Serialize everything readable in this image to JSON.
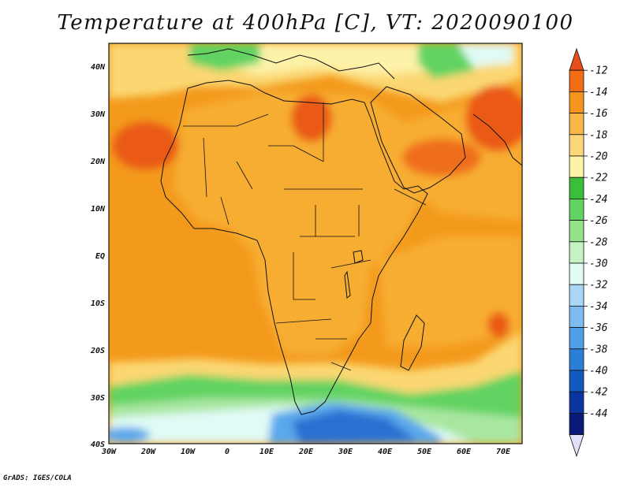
{
  "title": "Temperature at 400hPa [C], VT: 2020090100",
  "credit": "GrADS: IGES/COLA",
  "axes": {
    "lon_labels": [
      "30W",
      "20W",
      "10W",
      "0",
      "10E",
      "20E",
      "30E",
      "40E",
      "50E",
      "60E",
      "70E"
    ],
    "lat_labels": [
      "40N",
      "30N",
      "20N",
      "10N",
      "EQ",
      "10S",
      "20S",
      "30S",
      "40S"
    ]
  },
  "map_data": {
    "variable": "Temperature",
    "level": "400hPa",
    "units": "C",
    "valid_time": "2020090100",
    "lon_range": [
      -30,
      75
    ],
    "lat_range": [
      -40,
      45
    ]
  },
  "colorbar": {
    "labels": [
      "-12",
      "-14",
      "-16",
      "-18",
      "-20",
      "-22",
      "-24",
      "-26",
      "-28",
      "-30",
      "-32",
      "-34",
      "-36",
      "-38",
      "-40",
      "-42",
      "-44"
    ],
    "colors": [
      "#e84e1b",
      "#f26d15",
      "#f7941d",
      "#f9b547",
      "#fcd77a",
      "#fdf3a8",
      "#3bbf3b",
      "#62d362",
      "#93e28a",
      "#c4f2c0",
      "#e2fbf3",
      "#a9d6f5",
      "#7ebcf0",
      "#4f9fe8",
      "#2a7fd6",
      "#1259c0",
      "#0a34a0",
      "#0a1a78",
      "#e0e0fa"
    ]
  },
  "colors": {
    "ocean_orange": "#f39a1c",
    "land_orange": "#f7ad32",
    "warm_red": "#ea5a18",
    "yellow": "#fbd772",
    "pale": "#fdf2a8",
    "green": "#62d362",
    "light_green": "#a9e6a1",
    "cyan": "#e0fbf5",
    "blue": "#5aa8ec",
    "deep_blue": "#2c6fd1"
  }
}
